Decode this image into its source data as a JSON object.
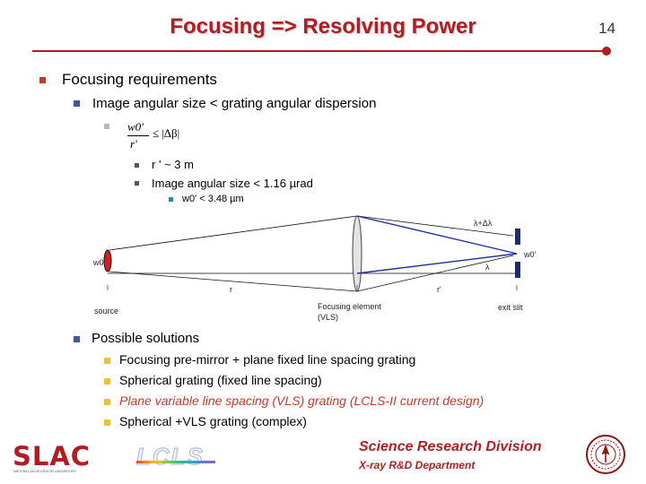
{
  "header": {
    "title": "Focusing => Resolving Power",
    "slide_number": "14"
  },
  "bullets": {
    "focusing_requirements": "Focusing requirements",
    "image_vs_dispersion": "Image angular size < grating angular dispersion",
    "formula": {
      "numerator": "w0'",
      "denominator": "r'",
      "relation": "≤",
      "rhs": "|Δβ|"
    },
    "r_prime": "r ' ~ 3 m",
    "image_size": "Image angular size < 1.16 µrad",
    "w0_prime": "w0' < 3.48 µm"
  },
  "diagram": {
    "lambda_plus": "λ+Δλ",
    "lambda": "λ",
    "w0": "w0",
    "w0_prime": "w0'",
    "r": "r",
    "r_prime": "r'",
    "source": "source",
    "focusing_element_line1": "Focusing element",
    "focusing_element_line2": "(VLS)",
    "exit_slit": "exit slit"
  },
  "solutions": {
    "heading": "Possible solutions",
    "items": [
      "Focusing pre-mirror + plane fixed line spacing grating",
      "Spherical grating (fixed line spacing)",
      "Plane variable line spacing (VLS) grating (LCLS-II current design)",
      "Spherical +VLS grating (complex)"
    ]
  },
  "footer": {
    "slac": "SLAC",
    "slac_sub": "NATIONAL ACCELERATOR LABORATORY",
    "lcls": "LCLS",
    "division": "Science Research Division",
    "department": "X-ray R&D Department"
  },
  "colors": {
    "title": "#b01e24",
    "blue_ray": "#1f2fa3",
    "vls_text": "#c0392b"
  }
}
